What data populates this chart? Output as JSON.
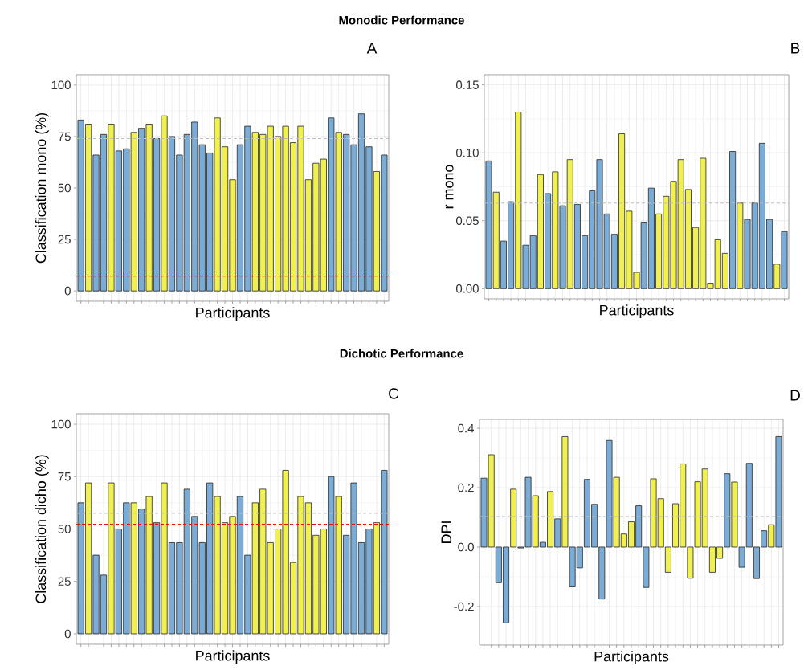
{
  "chart_data": [
    {
      "type": "bar",
      "title": "Monodic Performance",
      "annotations": [
        "A"
      ],
      "xlabel": "Participants",
      "ylabel": "Classification mono (%)",
      "categories": [
        null,
        null,
        null,
        null,
        null,
        null,
        null,
        null,
        null,
        null,
        null,
        null,
        null,
        null,
        null,
        null,
        null,
        null,
        null,
        null,
        null,
        null,
        null,
        null,
        null,
        null,
        null,
        null,
        null,
        null,
        null,
        null,
        null,
        null,
        null,
        null,
        null,
        null,
        null,
        null,
        null
      ],
      "values": [
        83,
        81,
        66,
        76,
        81,
        68,
        69,
        77,
        79,
        81,
        74,
        85,
        75,
        66,
        76,
        82,
        71,
        67,
        84,
        70,
        54,
        71,
        80,
        77,
        76,
        80,
        75,
        80,
        72,
        80,
        54,
        62,
        64,
        84,
        77,
        76,
        71,
        86,
        70,
        58,
        66
      ],
      "colors": [
        "#7aacd6",
        "#f0f050",
        "#7aacd6",
        "#7aacd6",
        "#f0f050",
        "#7aacd6",
        "#7aacd6",
        "#f0f050",
        "#7aacd6",
        "#f0f050",
        "#7aacd6",
        "#f0f050",
        "#7aacd6",
        "#7aacd6",
        "#7aacd6",
        "#7aacd6",
        "#7aacd6",
        "#7aacd6",
        "#f0f050",
        "#f0f050",
        "#f0f050",
        "#7aacd6",
        "#7aacd6",
        "#f0f050",
        "#f0f050",
        "#f0f050",
        "#f0f050",
        "#f0f050",
        "#f0f050",
        "#f0f050",
        "#f0f050",
        "#f0f050",
        "#f0f050",
        "#7aacd6",
        "#f0f050",
        "#7aacd6",
        "#7aacd6",
        "#7aacd6",
        "#7aacd6",
        "#f0f050",
        "#7aacd6"
      ],
      "ylim": [
        -5,
        105
      ],
      "yticks": [
        0,
        25,
        50,
        75,
        100
      ],
      "grid": true,
      "ref_lines": [
        {
          "axis": "y",
          "value": 74,
          "color": "#bebebe",
          "line_style": "dashed"
        },
        {
          "axis": "y",
          "value": 7.2,
          "color": "#ff0000",
          "line_style": "dashed"
        }
      ]
    },
    {
      "type": "bar",
      "annotations": [
        "B"
      ],
      "xlabel": "Participants",
      "ylabel": "r mono",
      "categories": [
        null,
        null,
        null,
        null,
        null,
        null,
        null,
        null,
        null,
        null,
        null,
        null,
        null,
        null,
        null,
        null,
        null,
        null,
        null,
        null,
        null,
        null,
        null,
        null,
        null,
        null,
        null,
        null,
        null,
        null,
        null,
        null,
        null,
        null,
        null,
        null,
        null,
        null,
        null,
        null,
        null
      ],
      "values": [
        0.094,
        0.071,
        0.035,
        0.064,
        0.13,
        0.032,
        0.039,
        0.084,
        0.07,
        0.086,
        0.061,
        0.095,
        0.062,
        0.039,
        0.072,
        0.095,
        0.055,
        0.04,
        0.114,
        0.057,
        0.012,
        0.049,
        0.074,
        0.055,
        0.068,
        0.079,
        0.095,
        0.073,
        0.045,
        0.096,
        0.004,
        0.036,
        0.026,
        0.101,
        0.063,
        0.051,
        0.063,
        0.107,
        0.051,
        0.018,
        0.042
      ],
      "colors": [
        "#7aacd6",
        "#f0f050",
        "#7aacd6",
        "#7aacd6",
        "#f0f050",
        "#7aacd6",
        "#7aacd6",
        "#f0f050",
        "#7aacd6",
        "#f0f050",
        "#7aacd6",
        "#f0f050",
        "#7aacd6",
        "#7aacd6",
        "#7aacd6",
        "#7aacd6",
        "#7aacd6",
        "#7aacd6",
        "#f0f050",
        "#f0f050",
        "#f0f050",
        "#7aacd6",
        "#7aacd6",
        "#f0f050",
        "#f0f050",
        "#f0f050",
        "#f0f050",
        "#f0f050",
        "#f0f050",
        "#f0f050",
        "#f0f050",
        "#f0f050",
        "#f0f050",
        "#7aacd6",
        "#f0f050",
        "#7aacd6",
        "#7aacd6",
        "#7aacd6",
        "#7aacd6",
        "#f0f050",
        "#7aacd6"
      ],
      "ylim": [
        -0.0075,
        0.1575
      ],
      "yticks": [
        {
          "value": 0,
          "label": "0.00"
        },
        {
          "value": 0.05,
          "label": "0.05"
        },
        {
          "value": 0.1,
          "label": "0.10"
        },
        {
          "value": 0.15,
          "label": "0.15"
        }
      ],
      "grid": true,
      "ref_lines": [
        {
          "axis": "y",
          "value": 0.063,
          "color": "#bebebe",
          "line_style": "dashed"
        }
      ]
    },
    {
      "type": "bar",
      "title": "Dichotic Performance",
      "annotations": [
        "C"
      ],
      "xlabel": "Participants",
      "ylabel": "Classification dicho (%)",
      "categories": [
        null,
        null,
        null,
        null,
        null,
        null,
        null,
        null,
        null,
        null,
        null,
        null,
        null,
        null,
        null,
        null,
        null,
        null,
        null,
        null,
        null,
        null,
        null,
        null,
        null,
        null,
        null,
        null,
        null,
        null,
        null,
        null,
        null,
        null,
        null,
        null,
        null,
        null,
        null,
        null,
        null
      ],
      "values": [
        62.5,
        72,
        37.5,
        28,
        72,
        50,
        62.5,
        62.5,
        59.5,
        65.5,
        53,
        72,
        43.5,
        43.5,
        69,
        56,
        43.5,
        72,
        65.5,
        53,
        56,
        65.5,
        37.5,
        62.5,
        69,
        43.5,
        50,
        78,
        34,
        65.5,
        62.5,
        47,
        50,
        75,
        65.5,
        47,
        72,
        43.5,
        50,
        53,
        78
      ],
      "colors": [
        "#7aacd6",
        "#f0f050",
        "#7aacd6",
        "#7aacd6",
        "#f0f050",
        "#7aacd6",
        "#7aacd6",
        "#f0f050",
        "#7aacd6",
        "#f0f050",
        "#7aacd6",
        "#f0f050",
        "#7aacd6",
        "#7aacd6",
        "#7aacd6",
        "#7aacd6",
        "#7aacd6",
        "#7aacd6",
        "#f0f050",
        "#f0f050",
        "#f0f050",
        "#7aacd6",
        "#7aacd6",
        "#f0f050",
        "#f0f050",
        "#f0f050",
        "#f0f050",
        "#f0f050",
        "#f0f050",
        "#f0f050",
        "#f0f050",
        "#f0f050",
        "#f0f050",
        "#7aacd6",
        "#f0f050",
        "#7aacd6",
        "#7aacd6",
        "#7aacd6",
        "#7aacd6",
        "#f0f050",
        "#7aacd6"
      ],
      "ylim": [
        -5,
        105
      ],
      "yticks": [
        0,
        25,
        50,
        75,
        100
      ],
      "grid": true,
      "ref_lines": [
        {
          "axis": "y",
          "value": 57.5,
          "color": "#bebebe",
          "line_style": "dashed"
        },
        {
          "axis": "y",
          "value": 52.3,
          "color": "#ff0000",
          "line_style": "dashed"
        }
      ]
    },
    {
      "type": "bar",
      "annotations": [
        "D"
      ],
      "xlabel": "Participants",
      "ylabel": "DPI",
      "categories": [
        null,
        null,
        null,
        null,
        null,
        null,
        null,
        null,
        null,
        null,
        null,
        null,
        null,
        null,
        null,
        null,
        null,
        null,
        null,
        null,
        null,
        null,
        null,
        null,
        null,
        null,
        null,
        null,
        null,
        null,
        null,
        null,
        null,
        null,
        null,
        null,
        null,
        null,
        null,
        null,
        null
      ],
      "values": [
        0.232,
        0.311,
        -0.12,
        -0.255,
        0.195,
        -0.003,
        0.235,
        0.173,
        0.016,
        0.187,
        0.095,
        0.372,
        -0.134,
        -0.07,
        0.228,
        0.144,
        -0.175,
        0.359,
        0.235,
        0.044,
        0.085,
        0.139,
        -0.136,
        0.23,
        0.163,
        -0.085,
        0.146,
        0.28,
        -0.105,
        0.22,
        0.263,
        -0.085,
        -0.038,
        0.247,
        0.219,
        -0.068,
        0.282,
        -0.106,
        0.055,
        0.075,
        0.372
      ],
      "colors": [
        "#7aacd6",
        "#f0f050",
        "#7aacd6",
        "#7aacd6",
        "#f0f050",
        "#7aacd6",
        "#7aacd6",
        "#f0f050",
        "#7aacd6",
        "#f0f050",
        "#7aacd6",
        "#f0f050",
        "#7aacd6",
        "#7aacd6",
        "#7aacd6",
        "#7aacd6",
        "#7aacd6",
        "#7aacd6",
        "#f0f050",
        "#f0f050",
        "#f0f050",
        "#7aacd6",
        "#7aacd6",
        "#f0f050",
        "#f0f050",
        "#f0f050",
        "#f0f050",
        "#f0f050",
        "#f0f050",
        "#f0f050",
        "#f0f050",
        "#f0f050",
        "#f0f050",
        "#7aacd6",
        "#f0f050",
        "#7aacd6",
        "#7aacd6",
        "#7aacd6",
        "#7aacd6",
        "#f0f050",
        "#7aacd6"
      ],
      "ylim": [
        -0.33,
        0.43
      ],
      "yticks": [
        {
          "value": -0.2,
          "label": "-0.2"
        },
        {
          "value": 0,
          "label": "0.0"
        },
        {
          "value": 0.2,
          "label": "0.2"
        },
        {
          "value": 0.4,
          "label": "0.4"
        }
      ],
      "grid": true,
      "ref_lines": [
        {
          "axis": "y",
          "value": 0.103,
          "color": "#bebebe",
          "line_style": "dashed"
        }
      ]
    }
  ]
}
